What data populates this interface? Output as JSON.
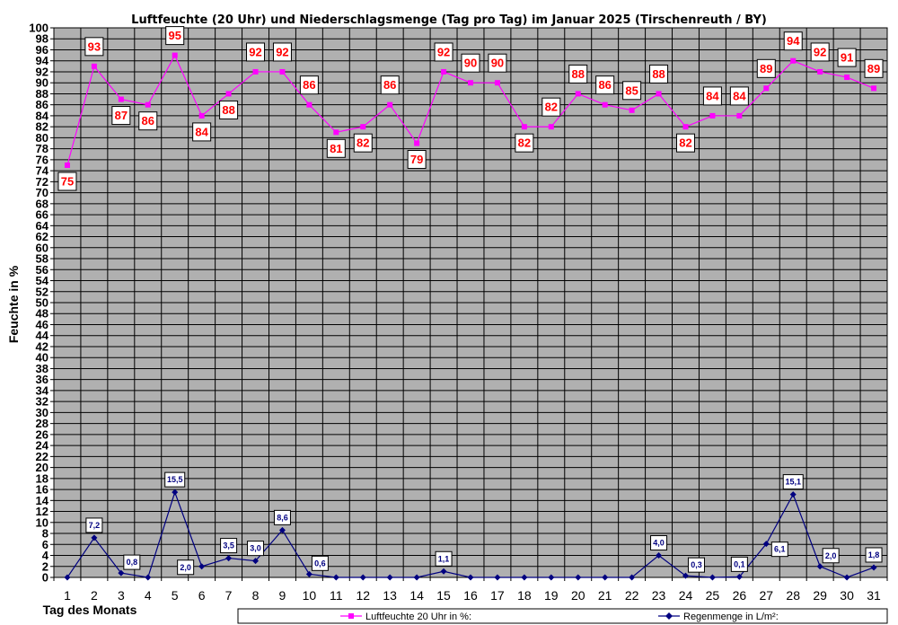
{
  "chart_data": {
    "type": "line",
    "title": "Luftfeuchte (20 Uhr) und Niederschlagsmenge (Tag pro Tag) im Januar 2025 (Tirschenreuth / BY)",
    "xlabel": "Tag des Monats",
    "ylabel": "Feuchte in %",
    "ylim": [
      0,
      100
    ],
    "ytick_step": 2,
    "grid": true,
    "legend_position": "bottom-right",
    "x": [
      "1",
      "2",
      "3",
      "4",
      "5",
      "6",
      "7",
      "8",
      "9",
      "10",
      "11",
      "12",
      "13",
      "14",
      "15",
      "16",
      "17",
      "18",
      "19",
      "20",
      "21",
      "22",
      "23",
      "24",
      "25",
      "26",
      "27",
      "28",
      "29",
      "30",
      "31"
    ],
    "series": [
      {
        "name": "Luftfeuchte 20 Uhr in %:",
        "color": "#ff00ff",
        "marker": "square",
        "values": [
          75,
          93,
          87,
          86,
          95,
          84,
          88,
          92,
          92,
          86,
          81,
          82,
          86,
          79,
          92,
          90,
          90,
          82,
          82,
          88,
          86,
          85,
          88,
          82,
          84,
          84,
          89,
          94,
          92,
          91,
          89
        ],
        "labels": [
          "75",
          "93",
          "87",
          "86",
          "95",
          "84",
          "88",
          "92",
          "92",
          "86",
          "81",
          "82",
          "86",
          "79",
          "92",
          "90",
          "90",
          "82",
          "82",
          "88",
          "86",
          "85",
          "88",
          "82",
          "84",
          "84",
          "89",
          "94",
          "92",
          "91",
          "89"
        ],
        "label_side": [
          "below",
          "above",
          "below",
          "below",
          "above",
          "below",
          "below",
          "above",
          "above",
          "above",
          "below",
          "below",
          "above",
          "below",
          "above",
          "above",
          "above",
          "below",
          "above",
          "above",
          "above",
          "above",
          "above",
          "below",
          "above",
          "above",
          "above",
          "above",
          "above",
          "above",
          "above"
        ]
      },
      {
        "name": "Regenmenge in L/m²:",
        "color": "#000080",
        "marker": "diamond",
        "values": [
          0,
          7.2,
          0.8,
          0,
          15.5,
          2.0,
          3.5,
          3.0,
          8.6,
          0.6,
          0,
          0,
          0,
          0,
          1.1,
          0,
          0,
          0,
          0,
          0,
          0,
          0,
          4.0,
          0.3,
          0,
          0.1,
          6.1,
          15.1,
          2.0,
          0,
          1.8
        ],
        "labels": [
          "",
          "7,2",
          "0,8",
          "",
          "15,5",
          "2,0",
          "3,5",
          "3,0",
          "8,6",
          "0,6",
          "",
          "",
          "",
          "",
          "1,1",
          "",
          "",
          "",
          "",
          "",
          "",
          "",
          "4,0",
          "0,3",
          "",
          "0,1",
          "6,1",
          "15,1",
          "2,0",
          "",
          "1,8"
        ],
        "label_pos": [
          "",
          "above",
          "upper-right",
          "",
          "above",
          "lower-left",
          "above",
          "above",
          "above",
          "upper-right",
          "",
          "",
          "",
          "",
          "above",
          "",
          "",
          "",
          "",
          "",
          "",
          "",
          "above",
          "upper-right",
          "",
          "above",
          "lower-right",
          "above",
          "upper-right",
          "",
          "above"
        ]
      }
    ]
  }
}
